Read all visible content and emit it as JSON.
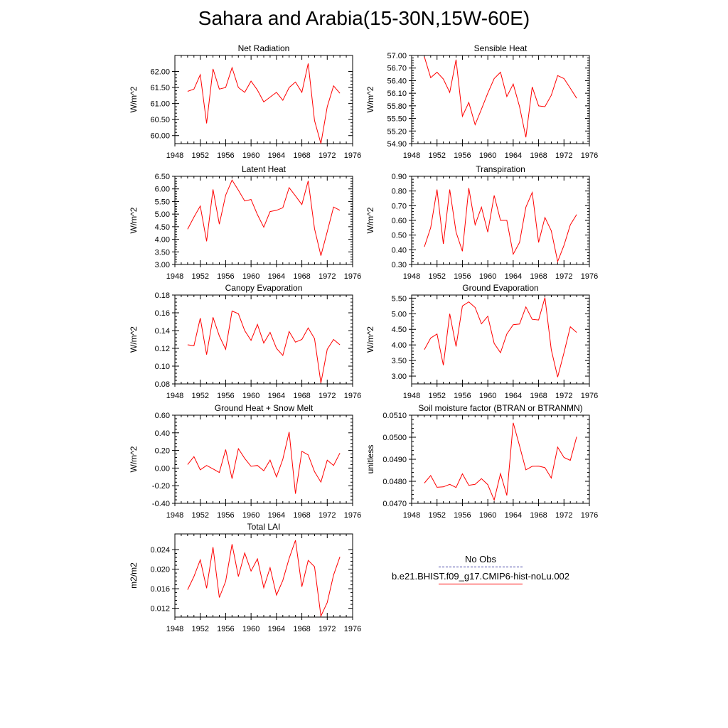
{
  "title": "Sahara and Arabia(15-30N,15W-60E)",
  "colors": {
    "model": "#ff0000",
    "obs": "#3a3aa0",
    "axes": "#000000"
  },
  "legend": {
    "obs_label": "No Obs",
    "model_label": "b.e21.BHIST.f09_g17.CMIP6-hist-noLu.002"
  },
  "chart_data": [
    {
      "type": "line",
      "title": "Net Radiation",
      "ylabel": "W/m^2",
      "xlim": [
        1948,
        1976
      ],
      "ylim": [
        59.75,
        62.5
      ],
      "xticks": [
        1948,
        1952,
        1956,
        1960,
        1964,
        1968,
        1972,
        1976
      ],
      "yticks": [
        60.0,
        60.5,
        61.0,
        61.5,
        62.0
      ],
      "decimals": 2,
      "x": [
        1950,
        1951,
        1952,
        1953,
        1954,
        1955,
        1956,
        1957,
        1958,
        1959,
        1960,
        1961,
        1962,
        1963,
        1964,
        1965,
        1966,
        1967,
        1968,
        1969,
        1970,
        1971,
        1972,
        1973,
        1974
      ],
      "series": [
        {
          "values": [
            61.38,
            61.45,
            61.9,
            60.38,
            62.08,
            61.45,
            61.5,
            62.12,
            61.5,
            61.35,
            61.7,
            61.42,
            61.05,
            61.2,
            61.35,
            61.1,
            61.5,
            61.67,
            61.35,
            62.25,
            60.47,
            59.75,
            60.9,
            61.55,
            61.32
          ]
        }
      ]
    },
    {
      "type": "line",
      "title": "Sensible Heat",
      "ylabel": "W/m^2",
      "xlim": [
        1948,
        1976
      ],
      "ylim": [
        54.9,
        57.0
      ],
      "xticks": [
        1948,
        1952,
        1956,
        1960,
        1964,
        1968,
        1972,
        1976
      ],
      "yticks": [
        54.9,
        55.2,
        55.5,
        55.8,
        56.1,
        56.4,
        56.7,
        57.0
      ],
      "decimals": 2,
      "x": [
        1950,
        1951,
        1952,
        1953,
        1954,
        1955,
        1956,
        1957,
        1958,
        1959,
        1960,
        1961,
        1962,
        1963,
        1964,
        1965,
        1966,
        1967,
        1968,
        1969,
        1970,
        1971,
        1972,
        1973,
        1974
      ],
      "series": [
        {
          "values": [
            56.97,
            56.47,
            56.6,
            56.44,
            56.12,
            56.9,
            55.55,
            55.88,
            55.35,
            55.72,
            56.1,
            56.45,
            56.6,
            56.02,
            56.32,
            55.78,
            55.05,
            56.25,
            55.8,
            55.78,
            56.05,
            56.52,
            56.45,
            56.22,
            55.98
          ]
        }
      ]
    },
    {
      "type": "line",
      "title": "Latent Heat",
      "ylabel": "W/m^2",
      "xlim": [
        1948,
        1976
      ],
      "ylim": [
        3.0,
        6.5
      ],
      "xticks": [
        1948,
        1952,
        1956,
        1960,
        1964,
        1968,
        1972,
        1976
      ],
      "yticks": [
        3.0,
        3.5,
        4.0,
        4.5,
        5.0,
        5.5,
        6.0,
        6.5
      ],
      "decimals": 2,
      "x": [
        1950,
        1951,
        1952,
        1953,
        1954,
        1955,
        1956,
        1957,
        1958,
        1959,
        1960,
        1961,
        1962,
        1963,
        1964,
        1965,
        1966,
        1967,
        1968,
        1969,
        1970,
        1971,
        1972,
        1973,
        1974
      ],
      "series": [
        {
          "values": [
            4.4,
            4.88,
            5.32,
            3.92,
            5.98,
            4.6,
            5.75,
            6.35,
            5.95,
            5.52,
            5.58,
            4.98,
            4.48,
            5.1,
            5.15,
            5.25,
            6.05,
            5.72,
            5.38,
            6.32,
            4.42,
            3.35,
            4.3,
            5.28,
            5.15
          ]
        }
      ]
    },
    {
      "type": "line",
      "title": "Transpiration",
      "ylabel": "W/m^2",
      "xlim": [
        1948,
        1976
      ],
      "ylim": [
        0.3,
        0.9
      ],
      "xticks": [
        1948,
        1952,
        1956,
        1960,
        1964,
        1968,
        1972,
        1976
      ],
      "yticks": [
        0.3,
        0.4,
        0.5,
        0.6,
        0.7,
        0.8,
        0.9
      ],
      "decimals": 2,
      "x": [
        1950,
        1951,
        1952,
        1953,
        1954,
        1955,
        1956,
        1957,
        1958,
        1959,
        1960,
        1961,
        1962,
        1963,
        1964,
        1965,
        1966,
        1967,
        1968,
        1969,
        1970,
        1971,
        1972,
        1973,
        1974
      ],
      "series": [
        {
          "values": [
            0.42,
            0.55,
            0.81,
            0.44,
            0.81,
            0.52,
            0.39,
            0.82,
            0.57,
            0.69,
            0.52,
            0.77,
            0.6,
            0.6,
            0.37,
            0.45,
            0.69,
            0.79,
            0.45,
            0.62,
            0.53,
            0.32,
            0.43,
            0.57,
            0.64
          ]
        }
      ]
    },
    {
      "type": "line",
      "title": "Canopy Evaporation",
      "ylabel": "W/m^2",
      "xlim": [
        1948,
        1976
      ],
      "ylim": [
        0.08,
        0.18
      ],
      "xticks": [
        1948,
        1952,
        1956,
        1960,
        1964,
        1968,
        1972,
        1976
      ],
      "yticks": [
        0.08,
        0.1,
        0.12,
        0.14,
        0.16,
        0.18
      ],
      "decimals": 2,
      "x": [
        1950,
        1951,
        1952,
        1953,
        1954,
        1955,
        1956,
        1957,
        1958,
        1959,
        1960,
        1961,
        1962,
        1963,
        1964,
        1965,
        1966,
        1967,
        1968,
        1969,
        1970,
        1971,
        1972,
        1973,
        1974
      ],
      "series": [
        {
          "values": [
            0.124,
            0.123,
            0.154,
            0.113,
            0.155,
            0.134,
            0.119,
            0.162,
            0.159,
            0.14,
            0.129,
            0.147,
            0.126,
            0.138,
            0.12,
            0.112,
            0.139,
            0.127,
            0.13,
            0.143,
            0.131,
            0.081,
            0.119,
            0.13,
            0.124
          ]
        }
      ]
    },
    {
      "type": "line",
      "title": "Ground Evaporation",
      "ylabel": "W/m^2",
      "xlim": [
        1948,
        1976
      ],
      "ylim": [
        2.75,
        5.6
      ],
      "xticks": [
        1948,
        1952,
        1956,
        1960,
        1964,
        1968,
        1972,
        1976
      ],
      "yticks": [
        3.0,
        3.5,
        4.0,
        4.5,
        5.0,
        5.5
      ],
      "decimals": 2,
      "x": [
        1950,
        1951,
        1952,
        1953,
        1954,
        1955,
        1956,
        1957,
        1958,
        1959,
        1960,
        1961,
        1962,
        1963,
        1964,
        1965,
        1966,
        1967,
        1968,
        1969,
        1970,
        1971,
        1972,
        1973,
        1974
      ],
      "series": [
        {
          "values": [
            3.85,
            4.22,
            4.35,
            3.35,
            5.0,
            3.95,
            5.25,
            5.38,
            5.2,
            4.68,
            4.92,
            4.05,
            3.75,
            4.35,
            4.65,
            4.67,
            5.22,
            4.82,
            4.8,
            5.52,
            3.85,
            2.97,
            3.75,
            4.58,
            4.4
          ]
        }
      ]
    },
    {
      "type": "line",
      "title": "Ground Heat + Snow Melt",
      "ylabel": "W/m^2",
      "xlim": [
        1948,
        1976
      ],
      "ylim": [
        -0.4,
        0.6
      ],
      "xticks": [
        1948,
        1952,
        1956,
        1960,
        1964,
        1968,
        1972,
        1976
      ],
      "yticks": [
        -0.4,
        -0.2,
        0.0,
        0.2,
        0.4,
        0.6
      ],
      "decimals": 2,
      "x": [
        1950,
        1951,
        1952,
        1953,
        1954,
        1955,
        1956,
        1957,
        1958,
        1959,
        1960,
        1961,
        1962,
        1963,
        1964,
        1965,
        1966,
        1967,
        1968,
        1969,
        1970,
        1971,
        1972,
        1973,
        1974
      ],
      "series": [
        {
          "values": [
            0.04,
            0.13,
            -0.02,
            0.03,
            -0.01,
            -0.05,
            0.21,
            -0.12,
            0.22,
            0.11,
            0.02,
            0.03,
            -0.03,
            0.09,
            -0.1,
            0.1,
            0.41,
            -0.29,
            0.19,
            0.15,
            -0.04,
            -0.16,
            0.09,
            0.03,
            0.17
          ]
        }
      ]
    },
    {
      "type": "line",
      "title": "Soil moisture factor (BTRAN or BTRANMN)",
      "ylabel": "unitless",
      "xlim": [
        1948,
        1976
      ],
      "ylim": [
        0.047,
        0.051
      ],
      "xticks": [
        1948,
        1952,
        1956,
        1960,
        1964,
        1968,
        1972,
        1976
      ],
      "yticks": [
        0.047,
        0.048,
        0.049,
        0.05,
        0.051
      ],
      "decimals": 4,
      "x": [
        1950,
        1951,
        1952,
        1953,
        1954,
        1955,
        1956,
        1957,
        1958,
        1959,
        1960,
        1961,
        1962,
        1963,
        1964,
        1965,
        1966,
        1967,
        1968,
        1969,
        1970,
        1971,
        1972,
        1973,
        1974
      ],
      "series": [
        {
          "values": [
            0.04792,
            0.04826,
            0.04773,
            0.04775,
            0.04786,
            0.04772,
            0.04834,
            0.04782,
            0.04786,
            0.04812,
            0.04785,
            0.04715,
            0.04835,
            0.04736,
            0.05065,
            0.04961,
            0.04852,
            0.04868,
            0.04869,
            0.04862,
            0.04815,
            0.04955,
            0.04908,
            0.04895,
            0.05002
          ]
        }
      ]
    },
    {
      "type": "line",
      "title": "Total LAI",
      "ylabel": "m2/m2",
      "xlim": [
        1948,
        1976
      ],
      "ylim": [
        0.0102,
        0.0272
      ],
      "xticks": [
        1948,
        1952,
        1956,
        1960,
        1964,
        1968,
        1972,
        1976
      ],
      "yticks": [
        0.012,
        0.016,
        0.02,
        0.024
      ],
      "decimals": 3,
      "x": [
        1950,
        1951,
        1952,
        1953,
        1954,
        1955,
        1956,
        1957,
        1958,
        1959,
        1960,
        1961,
        1962,
        1963,
        1964,
        1965,
        1966,
        1967,
        1968,
        1969,
        1970,
        1971,
        1972,
        1973,
        1974
      ],
      "series": [
        {
          "values": [
            0.0158,
            0.0185,
            0.0219,
            0.0161,
            0.0245,
            0.0142,
            0.0175,
            0.0251,
            0.0185,
            0.0233,
            0.0196,
            0.0221,
            0.0162,
            0.0203,
            0.0147,
            0.0177,
            0.0222,
            0.0259,
            0.0164,
            0.0218,
            0.0205,
            0.0104,
            0.0132,
            0.0188,
            0.0225
          ]
        }
      ]
    }
  ]
}
